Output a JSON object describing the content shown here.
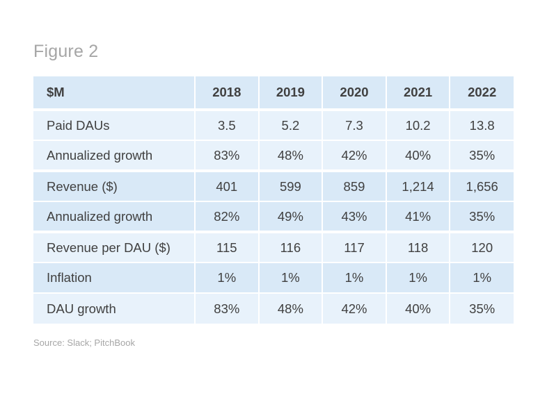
{
  "figure_title": "Figure 2",
  "source": "Source: Slack; PitchBook",
  "chart_data": {
    "type": "table",
    "columns": [
      "$M",
      "2018",
      "2019",
      "2020",
      "2021",
      "2022"
    ],
    "rows": [
      {
        "label": "Paid DAUs",
        "values": [
          "3.5",
          "5.2",
          "7.3",
          "10.2",
          "13.8"
        ]
      },
      {
        "label": "Annualized growth",
        "values": [
          "83%",
          "48%",
          "42%",
          "40%",
          "35%"
        ]
      },
      {
        "label": "Revenue ($)",
        "values": [
          "401",
          "599",
          "859",
          "1,214",
          "1,656"
        ]
      },
      {
        "label": "Annualized growth",
        "values": [
          "82%",
          "49%",
          "43%",
          "41%",
          "35%"
        ]
      },
      {
        "label": "Revenue per DAU ($)",
        "values": [
          "115",
          "116",
          "117",
          "118",
          "120"
        ]
      },
      {
        "label": "Inflation",
        "values": [
          "1%",
          "1%",
          "1%",
          "1%",
          "1%"
        ]
      },
      {
        "label": "DAU growth",
        "values": [
          "83%",
          "48%",
          "42%",
          "40%",
          "35%"
        ]
      }
    ]
  },
  "colors": {
    "header_bg": "#d9e9f7",
    "row_light": "#e8f2fb",
    "row_dark": "#d9e9f7",
    "text": "#404040",
    "muted": "#a6a6a6"
  }
}
